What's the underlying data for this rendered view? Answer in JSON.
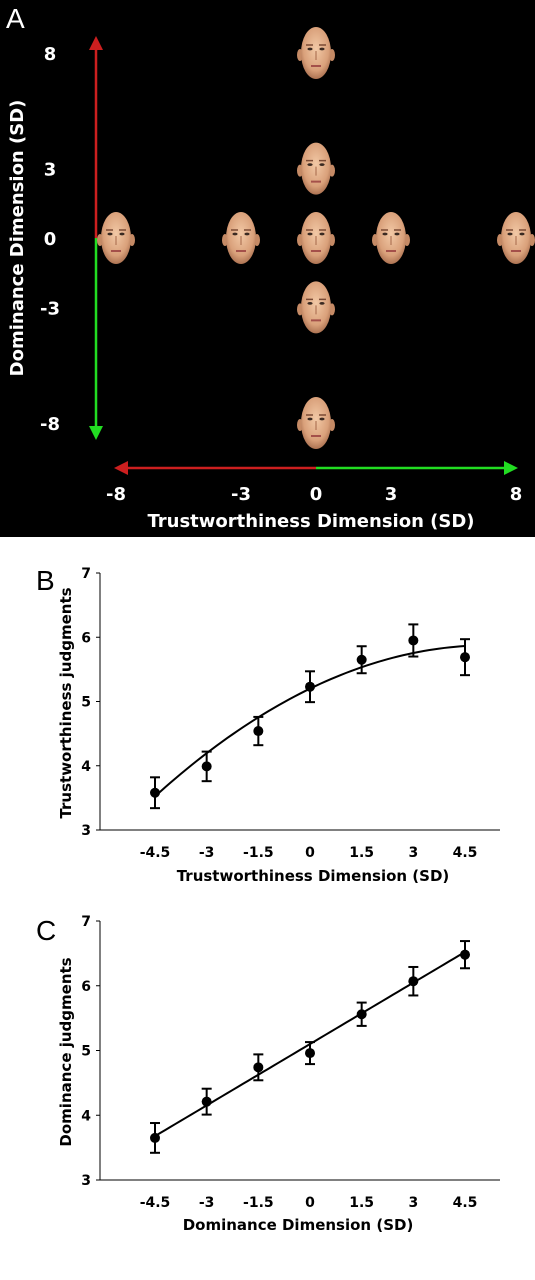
{
  "panels": {
    "a": {
      "letter": "A"
    },
    "b": {
      "letter": "B"
    },
    "c": {
      "letter": "C"
    }
  },
  "colors": {
    "panel_a_background": "#000000",
    "arrow_red": "#cc1f1f",
    "arrow_green": "#22dd22",
    "panel_a_text": "#ffffff",
    "plot_ink": "#000000"
  },
  "chart_data": [
    {
      "type": "scatter",
      "description_of_marks": "faces",
      "xlabel": "Trustworthiness Dimension (SD)",
      "ylabel": "Dominance Dimension (SD)",
      "x_ticks": [
        "-8",
        "-3",
        "0",
        "3",
        "8"
      ],
      "y_ticks": [
        "8",
        "3",
        "0",
        "-3",
        "-8"
      ],
      "x_arrow": {
        "negative_color": "red",
        "positive_color": "green"
      },
      "y_arrow": {
        "positive_color": "red",
        "negative_color": "green"
      },
      "points": [
        {
          "x": 0,
          "y": 8
        },
        {
          "x": 0,
          "y": 3
        },
        {
          "x": -8,
          "y": 0
        },
        {
          "x": -3,
          "y": 0
        },
        {
          "x": 0,
          "y": 0
        },
        {
          "x": 3,
          "y": 0
        },
        {
          "x": 8,
          "y": 0
        },
        {
          "x": 0,
          "y": -3
        },
        {
          "x": 0,
          "y": -8
        }
      ]
    },
    {
      "type": "scatter",
      "xlabel": "Trustworthiness Dimension (SD)",
      "ylabel": "Trustworthiness judgments",
      "x_ticks": [
        "-4.5",
        "-3",
        "-1.5",
        "0",
        "1.5",
        "3",
        "4.5"
      ],
      "y_ticks": [
        "3",
        "4",
        "5",
        "6",
        "7"
      ],
      "ylim": [
        3,
        7
      ],
      "x": [
        -4.5,
        -3,
        -1.5,
        0,
        1.5,
        3,
        4.5
      ],
      "y": [
        3.58,
        3.99,
        4.54,
        5.23,
        5.65,
        5.95,
        5.69
      ],
      "error": [
        0.24,
        0.23,
        0.22,
        0.24,
        0.21,
        0.25,
        0.28
      ],
      "fit": "quadratic",
      "fit_coefficients": [
        5.2,
        0.26,
        -0.025
      ]
    },
    {
      "type": "scatter",
      "xlabel": "Dominance Dimension (SD)",
      "ylabel": "Dominance judgments",
      "x_ticks": [
        "-4.5",
        "-3",
        "-1.5",
        "0",
        "1.5",
        "3",
        "4.5"
      ],
      "y_ticks": [
        "3",
        "4",
        "5",
        "6",
        "7"
      ],
      "ylim": [
        3,
        7
      ],
      "x": [
        -4.5,
        -3,
        -1.5,
        0,
        1.5,
        3,
        4.5
      ],
      "y": [
        3.65,
        4.21,
        4.74,
        4.96,
        5.56,
        6.07,
        6.48
      ],
      "error": [
        0.23,
        0.2,
        0.2,
        0.17,
        0.18,
        0.22,
        0.21
      ],
      "fit": "linear",
      "fit_coefficients": [
        5.1,
        0.316
      ]
    }
  ]
}
